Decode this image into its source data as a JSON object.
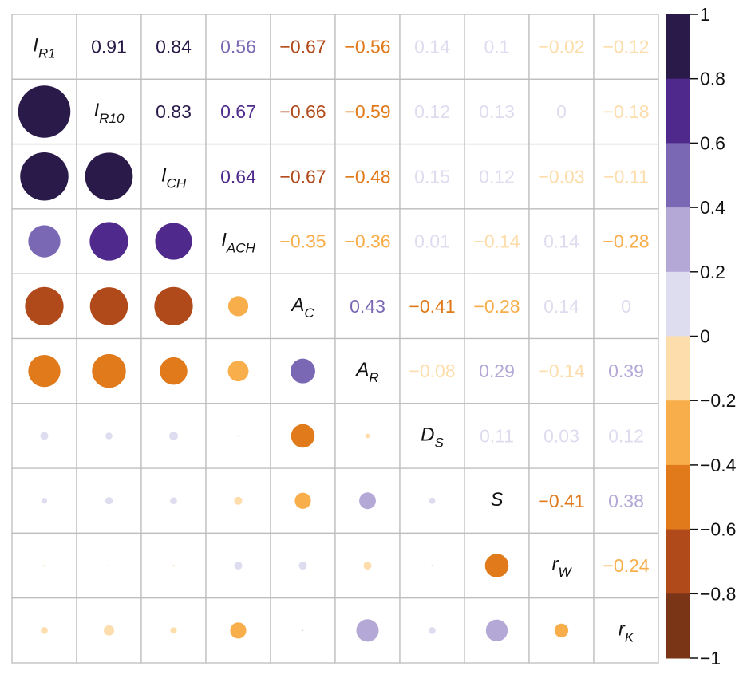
{
  "chart_data": {
    "type": "heatmap",
    "subtype": "correlation-matrix",
    "variables": [
      {
        "base": "I",
        "sub": "R1"
      },
      {
        "base": "I",
        "sub": "R10"
      },
      {
        "base": "I",
        "sub": "CH"
      },
      {
        "base": "I",
        "sub": "ACH"
      },
      {
        "base": "A",
        "sub": "C"
      },
      {
        "base": "A",
        "sub": "R"
      },
      {
        "base": "D",
        "sub": "S"
      },
      {
        "base": "S",
        "sub": ""
      },
      {
        "base": "r",
        "sub": "W"
      },
      {
        "base": "r",
        "sub": "K"
      }
    ],
    "upper_triangle": "numbers",
    "lower_triangle": "circles",
    "matrix": [
      [
        1,
        0.91,
        0.84,
        0.56,
        -0.67,
        -0.56,
        0.14,
        0.1,
        -0.02,
        -0.12
      ],
      [
        0.91,
        1,
        0.83,
        0.67,
        -0.66,
        -0.59,
        0.12,
        0.13,
        0,
        -0.18
      ],
      [
        0.84,
        0.83,
        1,
        0.64,
        -0.67,
        -0.48,
        0.15,
        0.12,
        -0.03,
        -0.11
      ],
      [
        0.56,
        0.67,
        0.64,
        1,
        -0.35,
        -0.36,
        0.01,
        -0.14,
        0.14,
        -0.28
      ],
      [
        -0.67,
        -0.66,
        -0.67,
        -0.35,
        1,
        0.43,
        -0.41,
        -0.28,
        0.14,
        0
      ],
      [
        -0.56,
        -0.59,
        -0.48,
        -0.36,
        0.43,
        1,
        -0.08,
        0.29,
        -0.14,
        0.39
      ],
      [
        0.14,
        0.12,
        0.15,
        0.01,
        -0.41,
        -0.08,
        1,
        0.11,
        0.03,
        0.12
      ],
      [
        0.1,
        0.13,
        0.12,
        -0.14,
        -0.28,
        0.29,
        0.11,
        1,
        -0.41,
        0.38
      ],
      [
        -0.02,
        0,
        -0.03,
        0.14,
        0.14,
        -0.14,
        0.03,
        -0.41,
        1,
        -0.24
      ],
      [
        -0.12,
        -0.18,
        -0.11,
        -0.28,
        0,
        0.39,
        0.12,
        0.38,
        -0.24,
        1
      ]
    ],
    "labels_upper": [
      [
        "",
        "0.91",
        "0.84",
        "0.56",
        "−0.67",
        "−0.56",
        "0.14",
        "0.1",
        "−0.02",
        "−0.12"
      ],
      [
        "",
        "",
        "0.83",
        "0.67",
        "−0.66",
        "−0.59",
        "0.12",
        "0.13",
        "0",
        "−0.18"
      ],
      [
        "",
        "",
        "",
        "0.64",
        "−0.67",
        "−0.48",
        "0.15",
        "0.12",
        "−0.03",
        "−0.11"
      ],
      [
        "",
        "",
        "",
        "",
        "−0.35",
        "−0.36",
        "0.01",
        "−0.14",
        "0.14",
        "−0.28"
      ],
      [
        "",
        "",
        "",
        "",
        "",
        "0.43",
        "−0.41",
        "−0.28",
        "0.14",
        "0"
      ],
      [
        "",
        "",
        "",
        "",
        "",
        "",
        "−0.08",
        "0.29",
        "−0.14",
        "0.39"
      ],
      [
        "",
        "",
        "",
        "",
        "",
        "",
        "",
        "0.11",
        "0.03",
        "0.12"
      ],
      [
        "",
        "",
        "",
        "",
        "",
        "",
        "",
        "",
        "−0.41",
        "0.38"
      ],
      [
        "",
        "",
        "",
        "",
        "",
        "",
        "",
        "",
        "",
        "−0.24"
      ],
      [
        "",
        "",
        "",
        "",
        "",
        "",
        "",
        "",
        "",
        ""
      ]
    ],
    "colorbar": {
      "range": [
        -1,
        1
      ],
      "ticks": [
        1,
        0.8,
        0.6,
        0.4,
        0.2,
        0,
        -0.2,
        -0.4,
        -0.6,
        -0.8,
        -1
      ],
      "tick_labels": [
        "1",
        "0.8",
        "0.6",
        "0.4",
        "0.2",
        "0",
        "−0.2",
        "−0.4",
        "−0.6",
        "−0.8",
        "−1"
      ],
      "bins": [
        {
          "from": 0.8,
          "to": 1.0,
          "color": "#2a1a49"
        },
        {
          "from": 0.6,
          "to": 0.8,
          "color": "#4f2a8c"
        },
        {
          "from": 0.4,
          "to": 0.6,
          "color": "#7b68b5"
        },
        {
          "from": 0.2,
          "to": 0.4,
          "color": "#b3a8d6"
        },
        {
          "from": 0.0,
          "to": 0.2,
          "color": "#dedcef"
        },
        {
          "from": -0.2,
          "to": 0.0,
          "color": "#fdddab"
        },
        {
          "from": -0.4,
          "to": -0.2,
          "color": "#f8ae4b"
        },
        {
          "from": -0.6,
          "to": -0.4,
          "color": "#e07a1b"
        },
        {
          "from": -0.8,
          "to": -0.6,
          "color": "#b14a1b"
        },
        {
          "from": -1.0,
          "to": -0.8,
          "color": "#7a3516"
        }
      ]
    },
    "grid_color": "#bdbdbd",
    "diagonal_text_color": "#111111"
  }
}
